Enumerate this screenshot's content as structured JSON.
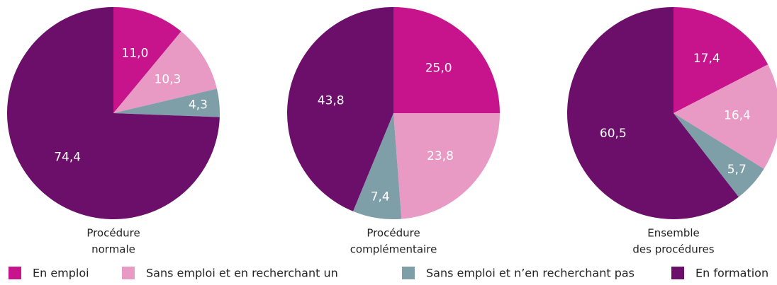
{
  "legend": [
    {
      "name": "En emploi",
      "color": "#c8148c"
    },
    {
      "name": "Sans emploi et en recherchant un",
      "color": "#e89ac4"
    },
    {
      "name": "Sans emploi et n’en recherchant pas",
      "color": "#7f9fa8"
    },
    {
      "name": "En formation",
      "color": "#6b0f6b"
    }
  ],
  "chart_data": [
    {
      "type": "pie",
      "title": [
        "Procédure",
        "normale"
      ],
      "values": [
        11.0,
        10.3,
        4.3,
        74.4
      ],
      "value_labels": [
        "11,0",
        "10,3",
        "4,3",
        "74,4"
      ]
    },
    {
      "type": "pie",
      "title": [
        "Procédure",
        "complémentaire"
      ],
      "values": [
        25.0,
        23.8,
        7.4,
        43.8
      ],
      "value_labels": [
        "25,0",
        "23,8",
        "7,4",
        "43,8"
      ]
    },
    {
      "type": "pie",
      "title": [
        "Ensemble",
        "des procédures"
      ],
      "values": [
        17.4,
        16.4,
        5.7,
        60.5
      ],
      "value_labels": [
        "17,4",
        "16,4",
        "5,7",
        "60,5"
      ]
    }
  ]
}
